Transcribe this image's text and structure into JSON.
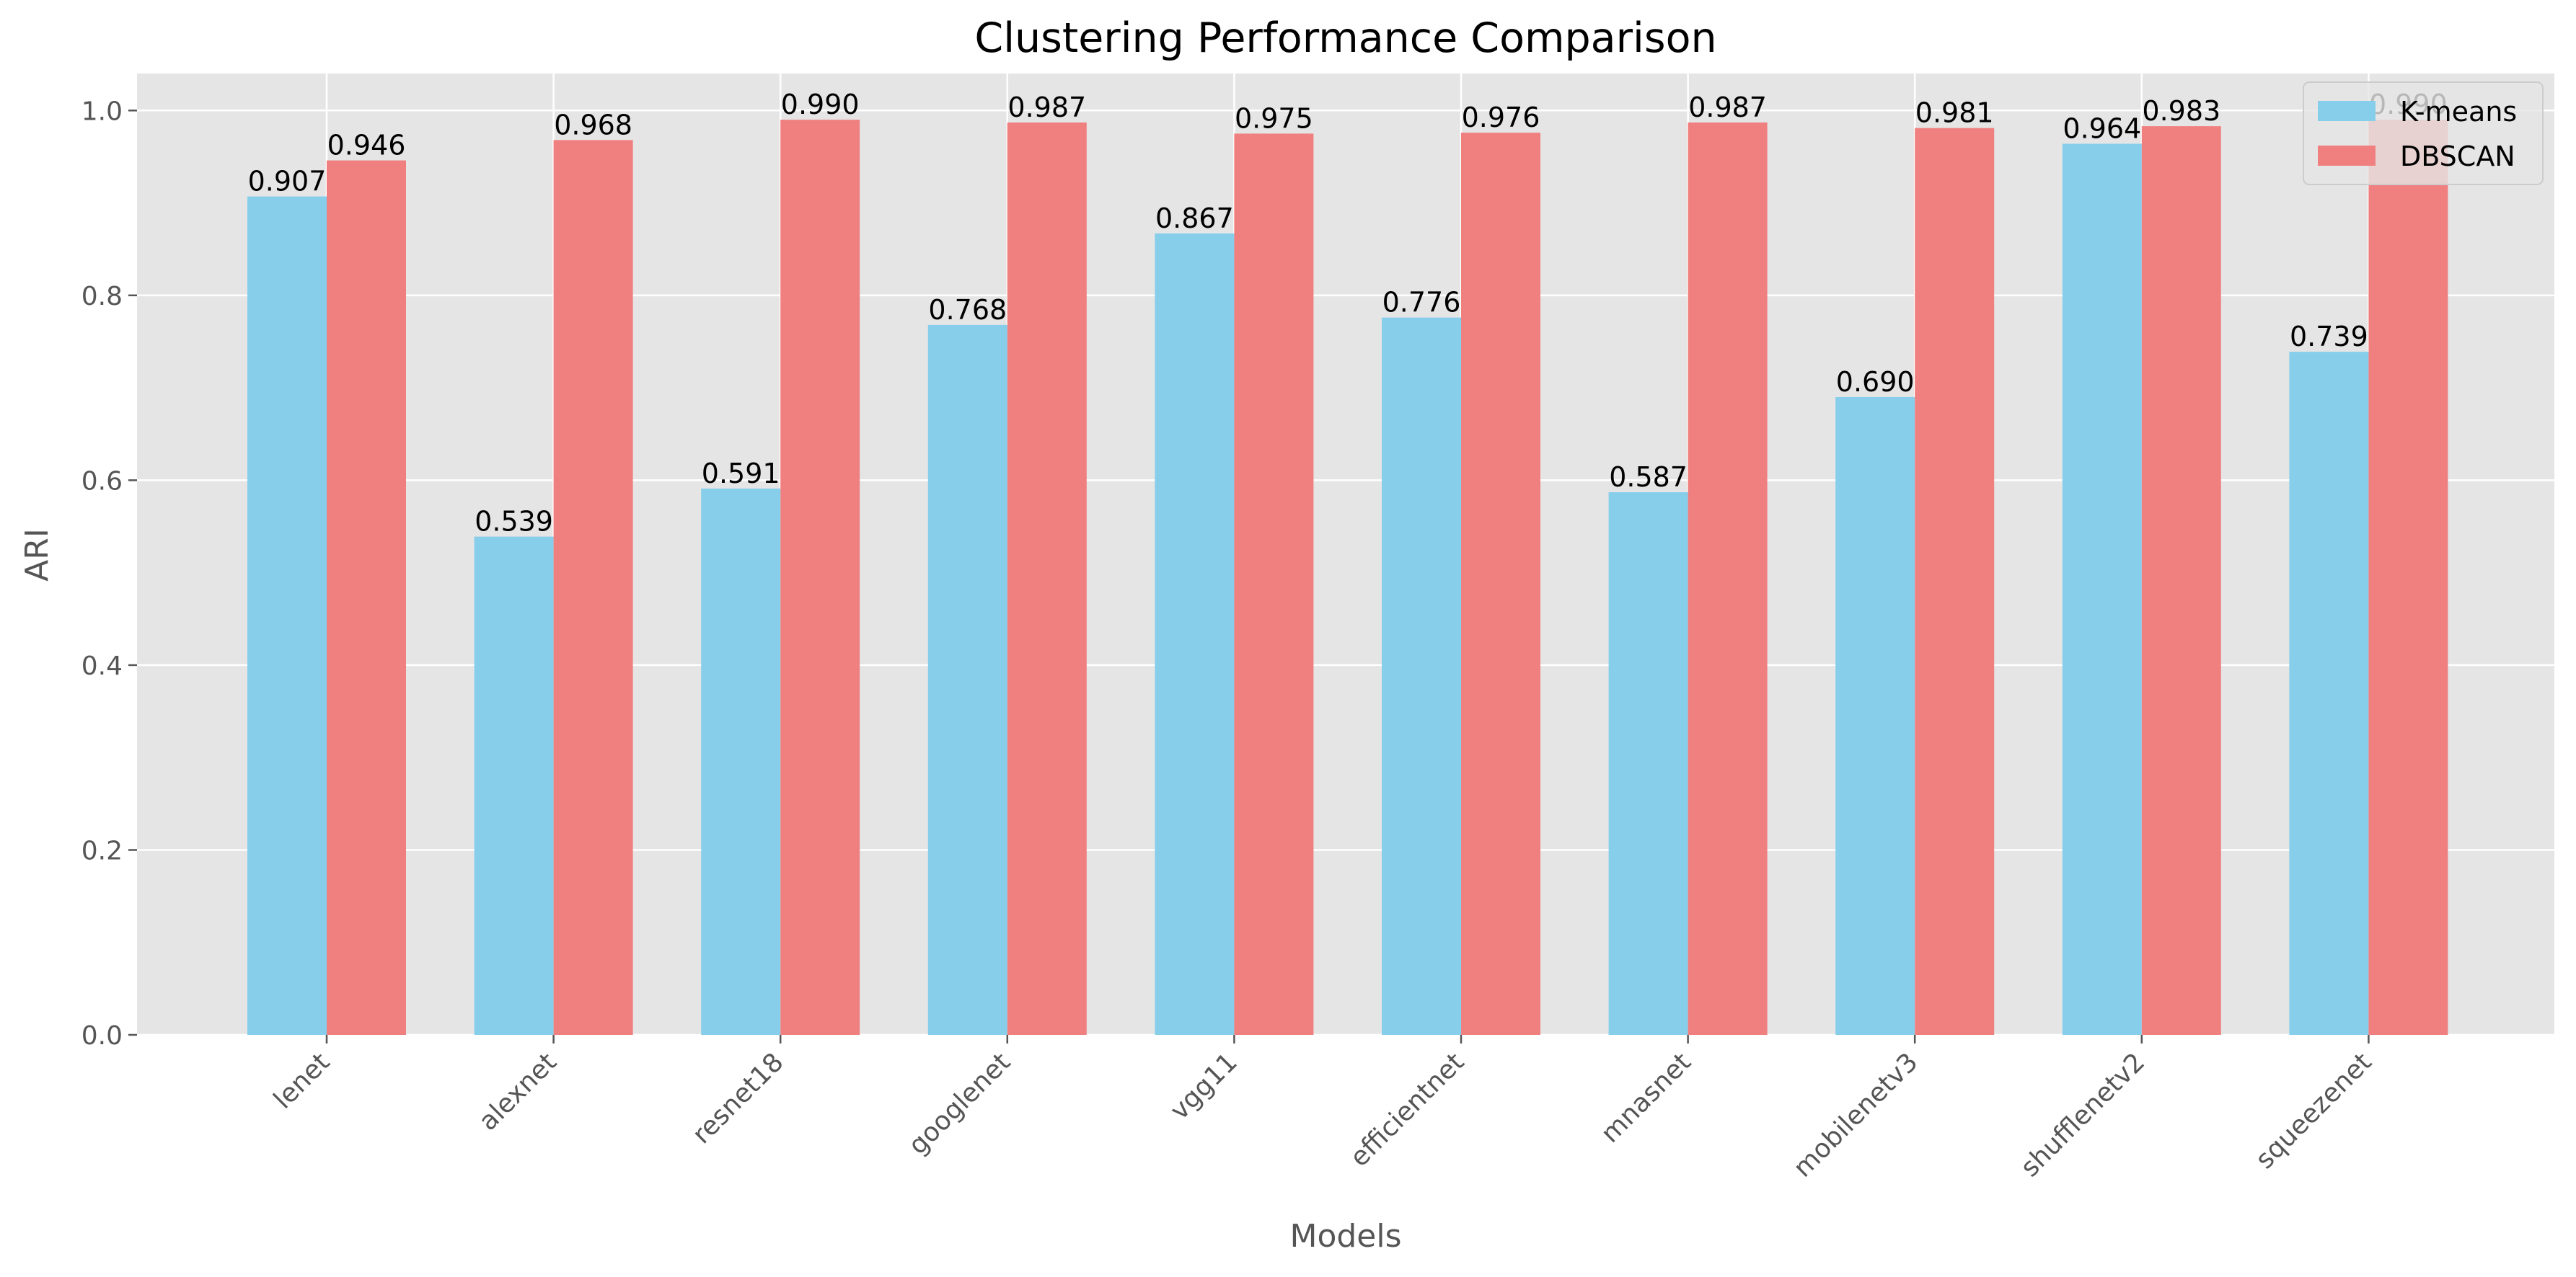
{
  "chart_data": {
    "type": "bar",
    "title": "Clustering Performance Comparison",
    "xlabel": "Models",
    "ylabel": "ARI",
    "ylim": [
      0,
      1.04
    ],
    "yticks": [
      "0.0",
      "0.2",
      "0.4",
      "0.6",
      "0.8",
      "1.0"
    ],
    "grid": true,
    "legend_position": "top-right",
    "categories": [
      "lenet",
      "alexnet",
      "resnet18",
      "googlenet",
      "vgg11",
      "efficientnet",
      "mnasnet",
      "mobilenetv3",
      "shufflenetv2",
      "squeezenet"
    ],
    "series": [
      {
        "name": "K-means",
        "color": "#87CEEB",
        "values": [
          0.907,
          0.539,
          0.591,
          0.768,
          0.867,
          0.776,
          0.587,
          0.69,
          0.964,
          0.739
        ],
        "labels": [
          "0.907",
          "0.539",
          "0.591",
          "0.768",
          "0.867",
          "0.776",
          "0.587",
          "0.690",
          "0.964",
          "0.739"
        ]
      },
      {
        "name": "DBSCAN",
        "color": "#F08080",
        "values": [
          0.946,
          0.968,
          0.99,
          0.987,
          0.975,
          0.976,
          0.987,
          0.981,
          0.983,
          0.99
        ],
        "labels": [
          "0.946",
          "0.968",
          "0.990",
          "0.987",
          "0.975",
          "0.976",
          "0.987",
          "0.981",
          "0.983",
          "0.990"
        ]
      }
    ]
  }
}
